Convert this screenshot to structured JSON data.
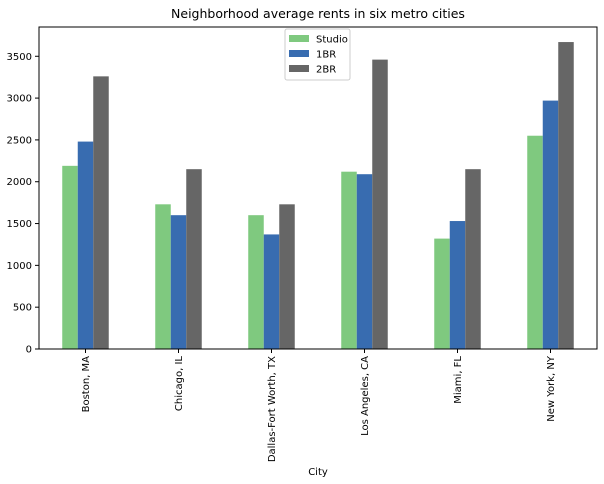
{
  "chart_data": {
    "type": "bar",
    "title": "Neighborhood average rents in six metro cities",
    "xlabel": "City",
    "ylabel": "",
    "categories": [
      "Boston, MA",
      "Chicago, IL",
      "Dallas-Fort Worth, TX",
      "Los Angeles, CA",
      "Miami, FL",
      "New York, NY"
    ],
    "series": [
      {
        "name": "Studio",
        "color": "#7fc97f",
        "values": [
          2190,
          1730,
          1600,
          2120,
          1320,
          2550
        ]
      },
      {
        "name": "1BR",
        "color": "#386cb0",
        "values": [
          2480,
          1600,
          1370,
          2090,
          1530,
          2970
        ]
      },
      {
        "name": "2BR",
        "color": "#666666",
        "values": [
          3260,
          2150,
          1730,
          3460,
          2150,
          3670
        ]
      }
    ],
    "ylim": [
      0,
      3850
    ],
    "yticks": [
      0,
      500,
      1000,
      1500,
      2000,
      2500,
      3000,
      3500
    ],
    "grid": false,
    "legend_position": "upper center"
  }
}
